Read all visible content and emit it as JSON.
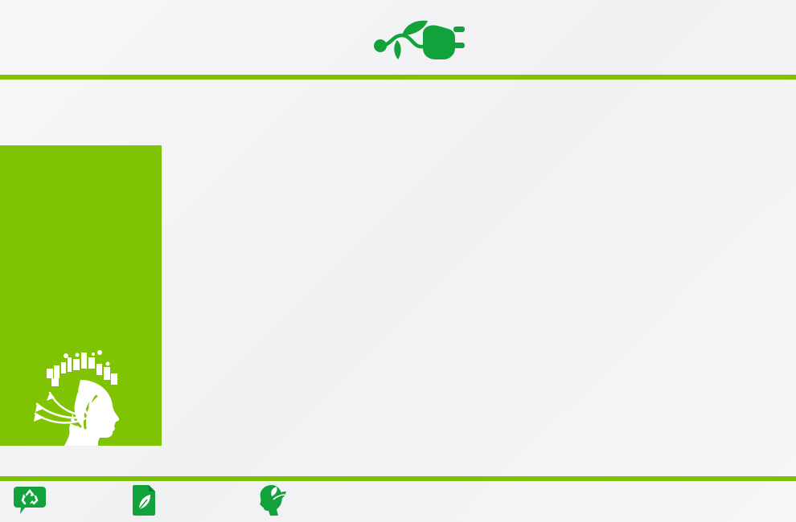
{
  "slide": {
    "title": "",
    "body": ""
  },
  "theme": {
    "accent_green": "#7dc102",
    "icon_green": "#12a23b",
    "panel_green": "#7fc302",
    "background": "#f3f4f5"
  },
  "icons": {
    "header": "eco-plug-icon",
    "panel": "eco-head-city-icon",
    "footer": [
      "recycle-chat-icon",
      "leaf-document-icon",
      "eco-head-profile-icon"
    ]
  }
}
